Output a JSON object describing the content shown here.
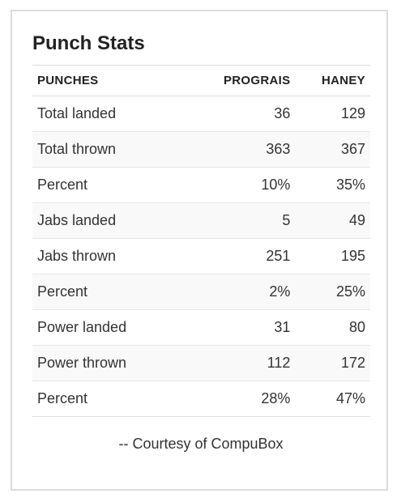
{
  "title": "Punch Stats",
  "table": {
    "headers": [
      "PUNCHES",
      "PROGRAIS",
      "HANEY"
    ],
    "rows": [
      [
        "Total landed",
        "36",
        "129"
      ],
      [
        "Total thrown",
        "363",
        "367"
      ],
      [
        "Percent",
        "10%",
        "35%"
      ],
      [
        "Jabs landed",
        "5",
        "49"
      ],
      [
        "Jabs thrown",
        "251",
        "195"
      ],
      [
        "Percent",
        "2%",
        "25%"
      ],
      [
        "Power landed",
        "31",
        "80"
      ],
      [
        "Power thrown",
        "112",
        "172"
      ],
      [
        "Percent",
        "28%",
        "47%"
      ]
    ]
  },
  "credit": "-- Courtesy of CompuBox"
}
